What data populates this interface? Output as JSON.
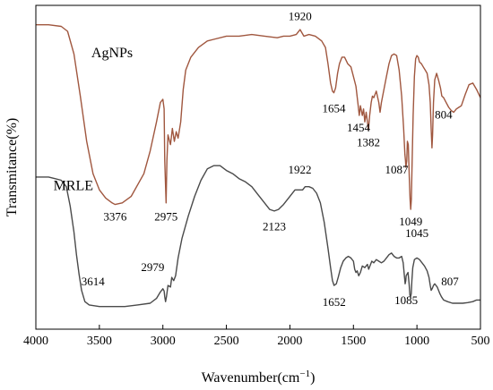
{
  "chart_data": {
    "type": "line",
    "xlabel": "Wavenumber(cm",
    "xlabel_sup": "−1",
    "xlabel_close": ")",
    "ylabel": "Transmitance(%)",
    "xlim": [
      4000,
      500
    ],
    "x_reversed": true,
    "xticks": [
      "4000",
      "3500",
      "3000",
      "2500",
      "2000",
      "1500",
      "1000",
      "500"
    ],
    "y_ticks_shown": false,
    "grid": false,
    "series": [
      {
        "name": "AgNPs",
        "color": "#a0573f",
        "points": [
          [
            4000,
            0.94
          ],
          [
            3900,
            0.94
          ],
          [
            3800,
            0.935
          ],
          [
            3750,
            0.92
          ],
          [
            3700,
            0.85
          ],
          [
            3650,
            0.72
          ],
          [
            3600,
            0.58
          ],
          [
            3550,
            0.48
          ],
          [
            3500,
            0.43
          ],
          [
            3450,
            0.405
          ],
          [
            3400,
            0.39
          ],
          [
            3376,
            0.385
          ],
          [
            3320,
            0.39
          ],
          [
            3250,
            0.41
          ],
          [
            3150,
            0.48
          ],
          [
            3100,
            0.55
          ],
          [
            3050,
            0.64
          ],
          [
            3020,
            0.7
          ],
          [
            3000,
            0.71
          ],
          [
            2990,
            0.68
          ],
          [
            2985,
            0.52
          ],
          [
            2975,
            0.39
          ],
          [
            2968,
            0.52
          ],
          [
            2960,
            0.6
          ],
          [
            2940,
            0.57
          ],
          [
            2925,
            0.62
          ],
          [
            2910,
            0.58
          ],
          [
            2895,
            0.61
          ],
          [
            2880,
            0.59
          ],
          [
            2860,
            0.64
          ],
          [
            2840,
            0.74
          ],
          [
            2820,
            0.8
          ],
          [
            2780,
            0.84
          ],
          [
            2720,
            0.87
          ],
          [
            2650,
            0.89
          ],
          [
            2600,
            0.895
          ],
          [
            2500,
            0.905
          ],
          [
            2400,
            0.905
          ],
          [
            2300,
            0.91
          ],
          [
            2200,
            0.905
          ],
          [
            2100,
            0.9
          ],
          [
            2050,
            0.905
          ],
          [
            2000,
            0.905
          ],
          [
            1950,
            0.91
          ],
          [
            1920,
            0.925
          ],
          [
            1890,
            0.905
          ],
          [
            1850,
            0.91
          ],
          [
            1800,
            0.905
          ],
          [
            1750,
            0.89
          ],
          [
            1720,
            0.87
          ],
          [
            1700,
            0.82
          ],
          [
            1680,
            0.76
          ],
          [
            1665,
            0.735
          ],
          [
            1654,
            0.73
          ],
          [
            1640,
            0.745
          ],
          [
            1625,
            0.79
          ],
          [
            1610,
            0.82
          ],
          [
            1590,
            0.84
          ],
          [
            1570,
            0.84
          ],
          [
            1545,
            0.82
          ],
          [
            1520,
            0.81
          ],
          [
            1500,
            0.78
          ],
          [
            1480,
            0.75
          ],
          [
            1465,
            0.7
          ],
          [
            1454,
            0.66
          ],
          [
            1445,
            0.69
          ],
          [
            1430,
            0.66
          ],
          [
            1420,
            0.68
          ],
          [
            1410,
            0.64
          ],
          [
            1400,
            0.67
          ],
          [
            1390,
            0.64
          ],
          [
            1382,
            0.615
          ],
          [
            1372,
            0.66
          ],
          [
            1360,
            0.7
          ],
          [
            1350,
            0.72
          ],
          [
            1340,
            0.715
          ],
          [
            1320,
            0.735
          ],
          [
            1300,
            0.7
          ],
          [
            1290,
            0.67
          ],
          [
            1280,
            0.7
          ],
          [
            1260,
            0.74
          ],
          [
            1240,
            0.78
          ],
          [
            1220,
            0.82
          ],
          [
            1200,
            0.845
          ],
          [
            1180,
            0.85
          ],
          [
            1160,
            0.845
          ],
          [
            1140,
            0.8
          ],
          [
            1120,
            0.72
          ],
          [
            1105,
            0.62
          ],
          [
            1095,
            0.54
          ],
          [
            1090,
            0.52
          ],
          [
            1087,
            0.5
          ],
          [
            1080,
            0.52
          ],
          [
            1075,
            0.58
          ],
          [
            1068,
            0.57
          ],
          [
            1060,
            0.47
          ],
          [
            1054,
            0.4
          ],
          [
            1049,
            0.37
          ],
          [
            1044,
            0.4
          ],
          [
            1038,
            0.52
          ],
          [
            1030,
            0.66
          ],
          [
            1020,
            0.78
          ],
          [
            1010,
            0.835
          ],
          [
            1000,
            0.845
          ],
          [
            990,
            0.84
          ],
          [
            980,
            0.825
          ],
          [
            965,
            0.82
          ],
          [
            950,
            0.81
          ],
          [
            935,
            0.8
          ],
          [
            920,
            0.79
          ],
          [
            905,
            0.755
          ],
          [
            895,
            0.7
          ],
          [
            888,
            0.62
          ],
          [
            882,
            0.56
          ],
          [
            877,
            0.6
          ],
          [
            870,
            0.7
          ],
          [
            860,
            0.77
          ],
          [
            845,
            0.79
          ],
          [
            830,
            0.77
          ],
          [
            815,
            0.745
          ],
          [
            804,
            0.72
          ],
          [
            790,
            0.715
          ],
          [
            770,
            0.7
          ],
          [
            750,
            0.685
          ],
          [
            730,
            0.675
          ],
          [
            710,
            0.67
          ],
          [
            690,
            0.68
          ],
          [
            670,
            0.685
          ],
          [
            650,
            0.69
          ],
          [
            620,
            0.725
          ],
          [
            590,
            0.755
          ],
          [
            560,
            0.76
          ],
          [
            530,
            0.74
          ],
          [
            500,
            0.715
          ]
        ]
      },
      {
        "name": "MRLE",
        "color": "#4a4a4a",
        "points": [
          [
            4000,
            0.47
          ],
          [
            3900,
            0.47
          ],
          [
            3850,
            0.465
          ],
          [
            3800,
            0.46
          ],
          [
            3760,
            0.44
          ],
          [
            3730,
            0.38
          ],
          [
            3700,
            0.3
          ],
          [
            3680,
            0.23
          ],
          [
            3660,
            0.17
          ],
          [
            3640,
            0.12
          ],
          [
            3614,
            0.085
          ],
          [
            3580,
            0.075
          ],
          [
            3500,
            0.07
          ],
          [
            3400,
            0.07
          ],
          [
            3300,
            0.07
          ],
          [
            3200,
            0.075
          ],
          [
            3100,
            0.08
          ],
          [
            3050,
            0.095
          ],
          [
            3020,
            0.115
          ],
          [
            3000,
            0.125
          ],
          [
            2990,
            0.118
          ],
          [
            2985,
            0.1
          ],
          [
            2979,
            0.085
          ],
          [
            2972,
            0.1
          ],
          [
            2960,
            0.135
          ],
          [
            2940,
            0.13
          ],
          [
            2930,
            0.16
          ],
          [
            2915,
            0.15
          ],
          [
            2900,
            0.165
          ],
          [
            2880,
            0.22
          ],
          [
            2850,
            0.28
          ],
          [
            2800,
            0.35
          ],
          [
            2750,
            0.41
          ],
          [
            2700,
            0.46
          ],
          [
            2650,
            0.495
          ],
          [
            2600,
            0.505
          ],
          [
            2550,
            0.505
          ],
          [
            2500,
            0.49
          ],
          [
            2450,
            0.48
          ],
          [
            2400,
            0.465
          ],
          [
            2350,
            0.455
          ],
          [
            2300,
            0.44
          ],
          [
            2250,
            0.415
          ],
          [
            2200,
            0.39
          ],
          [
            2160,
            0.37
          ],
          [
            2123,
            0.365
          ],
          [
            2090,
            0.37
          ],
          [
            2050,
            0.385
          ],
          [
            2000,
            0.41
          ],
          [
            1960,
            0.43
          ],
          [
            1922,
            0.43
          ],
          [
            1900,
            0.43
          ],
          [
            1880,
            0.44
          ],
          [
            1850,
            0.44
          ],
          [
            1820,
            0.435
          ],
          [
            1790,
            0.42
          ],
          [
            1760,
            0.39
          ],
          [
            1730,
            0.33
          ],
          [
            1700,
            0.25
          ],
          [
            1680,
            0.19
          ],
          [
            1665,
            0.15
          ],
          [
            1652,
            0.135
          ],
          [
            1635,
            0.14
          ],
          [
            1620,
            0.16
          ],
          [
            1600,
            0.19
          ],
          [
            1580,
            0.21
          ],
          [
            1560,
            0.22
          ],
          [
            1540,
            0.225
          ],
          [
            1520,
            0.22
          ],
          [
            1500,
            0.21
          ],
          [
            1490,
            0.185
          ],
          [
            1480,
            0.175
          ],
          [
            1470,
            0.18
          ],
          [
            1458,
            0.165
          ],
          [
            1445,
            0.175
          ],
          [
            1430,
            0.195
          ],
          [
            1410,
            0.19
          ],
          [
            1390,
            0.2
          ],
          [
            1380,
            0.185
          ],
          [
            1370,
            0.195
          ],
          [
            1355,
            0.21
          ],
          [
            1340,
            0.205
          ],
          [
            1320,
            0.215
          ],
          [
            1300,
            0.21
          ],
          [
            1280,
            0.205
          ],
          [
            1260,
            0.21
          ],
          [
            1240,
            0.22
          ],
          [
            1220,
            0.23
          ],
          [
            1200,
            0.235
          ],
          [
            1180,
            0.225
          ],
          [
            1160,
            0.22
          ],
          [
            1140,
            0.22
          ],
          [
            1120,
            0.225
          ],
          [
            1108,
            0.205
          ],
          [
            1098,
            0.16
          ],
          [
            1093,
            0.14
          ],
          [
            1088,
            0.15
          ],
          [
            1085,
            0.165
          ],
          [
            1078,
            0.17
          ],
          [
            1070,
            0.175
          ],
          [
            1062,
            0.14
          ],
          [
            1055,
            0.105
          ],
          [
            1050,
            0.1
          ],
          [
            1045,
            0.11
          ],
          [
            1040,
            0.15
          ],
          [
            1033,
            0.19
          ],
          [
            1020,
            0.215
          ],
          [
            1000,
            0.22
          ],
          [
            980,
            0.215
          ],
          [
            960,
            0.205
          ],
          [
            940,
            0.195
          ],
          [
            920,
            0.18
          ],
          [
            905,
            0.16
          ],
          [
            895,
            0.135
          ],
          [
            888,
            0.12
          ],
          [
            880,
            0.125
          ],
          [
            870,
            0.135
          ],
          [
            860,
            0.14
          ],
          [
            840,
            0.13
          ],
          [
            820,
            0.11
          ],
          [
            807,
            0.1
          ],
          [
            790,
            0.09
          ],
          [
            760,
            0.085
          ],
          [
            720,
            0.08
          ],
          [
            680,
            0.08
          ],
          [
            640,
            0.08
          ],
          [
            600,
            0.082
          ],
          [
            560,
            0.085
          ],
          [
            530,
            0.09
          ],
          [
            500,
            0.09
          ]
        ]
      }
    ],
    "annotations": [
      {
        "text": "AgNPs",
        "x": 3400,
        "y": 0.84,
        "anchor": "middle",
        "size": "large"
      },
      {
        "text": "3376",
        "x": 3376,
        "y": 0.335,
        "anchor": "middle"
      },
      {
        "text": "2975",
        "x": 2975,
        "y": 0.335,
        "anchor": "middle"
      },
      {
        "text": "1920",
        "x": 1920,
        "y": 0.955,
        "anchor": "middle"
      },
      {
        "text": "1654",
        "x": 1654,
        "y": 0.67,
        "anchor": "middle"
      },
      {
        "text": "1454",
        "x": 1460,
        "y": 0.61,
        "anchor": "middle"
      },
      {
        "text": "1382",
        "x": 1382,
        "y": 0.565,
        "anchor": "middle"
      },
      {
        "text": "1087",
        "x": 1160,
        "y": 0.48,
        "anchor": "middle"
      },
      {
        "text": "1049",
        "x": 1049,
        "y": 0.32,
        "anchor": "middle"
      },
      {
        "text": "804",
        "x": 790,
        "y": 0.65,
        "anchor": "middle"
      },
      {
        "text": "MRLE",
        "x": 3705,
        "y": 0.43,
        "anchor": "middle",
        "size": "large"
      },
      {
        "text": "3614",
        "x": 3550,
        "y": 0.135,
        "anchor": "middle"
      },
      {
        "text": "2979",
        "x": 3080,
        "y": 0.18,
        "anchor": "middle"
      },
      {
        "text": "2123",
        "x": 2123,
        "y": 0.305,
        "anchor": "middle"
      },
      {
        "text": "1922",
        "x": 1922,
        "y": 0.48,
        "anchor": "middle"
      },
      {
        "text": "1652",
        "x": 1652,
        "y": 0.072,
        "anchor": "middle"
      },
      {
        "text": "1085",
        "x": 1085,
        "y": 0.078,
        "anchor": "middle"
      },
      {
        "text": "1045",
        "x": 1000,
        "y": 0.285,
        "anchor": "middle"
      },
      {
        "text": "807",
        "x": 740,
        "y": 0.135,
        "anchor": "middle"
      }
    ]
  }
}
